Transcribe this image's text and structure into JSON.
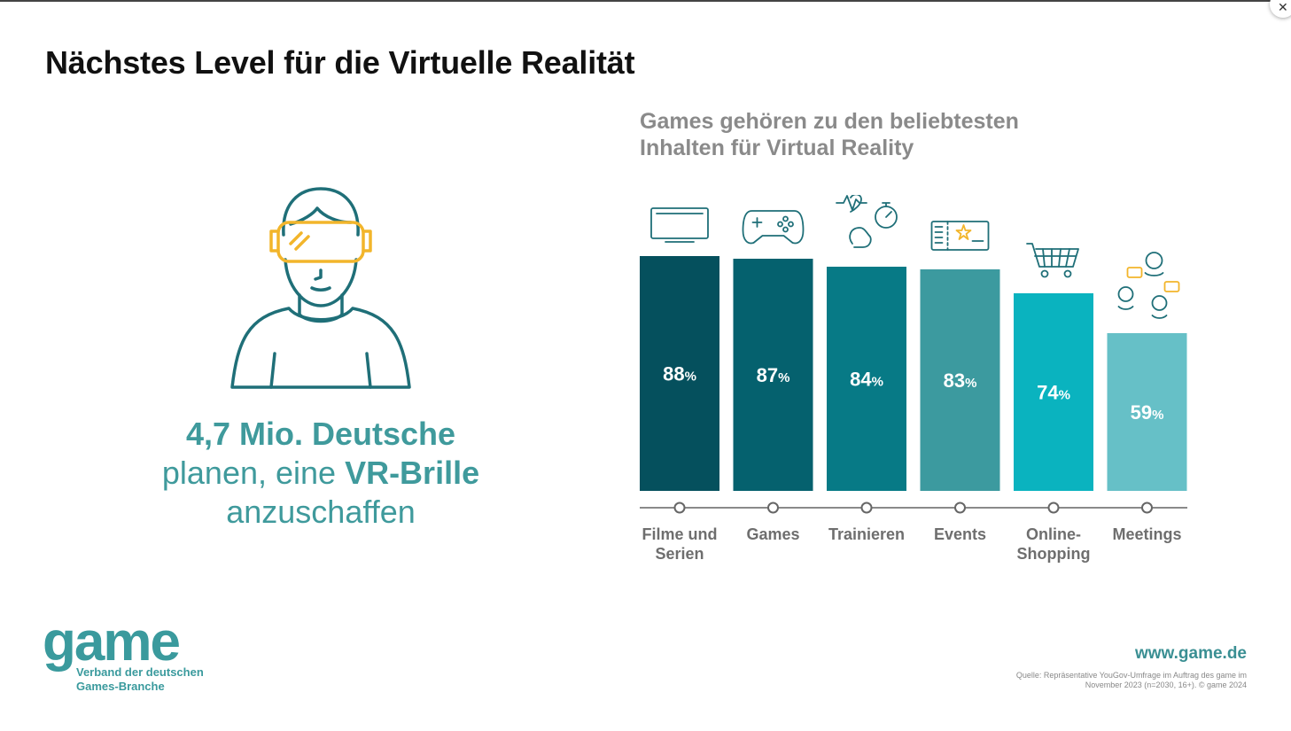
{
  "page": {
    "title": "Nächstes Level für die Virtuelle Realität"
  },
  "stat": {
    "line1_bold": "4,7 Mio. Deutsche",
    "line2_regular": "planen, eine ",
    "line2_bold": "VR-Brille",
    "line3": "anzuschaffen"
  },
  "colors": {
    "accent": "#3f9a9c",
    "headset": "#f2b52b",
    "bars": [
      "#05505d",
      "#05616e",
      "#077a86",
      "#3c9a9f",
      "#0ab3bf",
      "#66c0c7"
    ]
  },
  "chart_data": {
    "type": "bar",
    "title_lines": [
      "Games gehören zu den beliebtesten",
      "Inhalten für Virtual Reality"
    ],
    "categories": [
      "Filme und Serien",
      "Games",
      "Trainieren",
      "Events",
      "Online-Shopping",
      "Meetings"
    ],
    "category_lines": [
      [
        "Filme und",
        "Serien"
      ],
      [
        "Games"
      ],
      [
        "Trainieren"
      ],
      [
        "Events"
      ],
      [
        "Online-",
        "Shopping"
      ],
      [
        "Meetings"
      ]
    ],
    "values": [
      88,
      87,
      84,
      83,
      74,
      59
    ],
    "value_labels": [
      "88",
      "87",
      "84",
      "83",
      "74",
      "59"
    ],
    "unit": "%",
    "icons": [
      "tv-icon",
      "gamepad-icon",
      "fitness-icon",
      "ticket-icon",
      "shopping-cart-icon",
      "chat-people-icon"
    ],
    "ylim": [
      0,
      88
    ],
    "grid": false,
    "legend": "none"
  },
  "footer": {
    "logo_word": "game",
    "logo_sub_lines": [
      "Verband der deutschen",
      "Games-Branche"
    ],
    "website": "www.game.de",
    "source_lines": [
      "Quelle: Repräsentative YouGov-Umfrage im Auftrag des game im",
      "November 2023 (n=2030, 16+). © game 2024"
    ]
  }
}
